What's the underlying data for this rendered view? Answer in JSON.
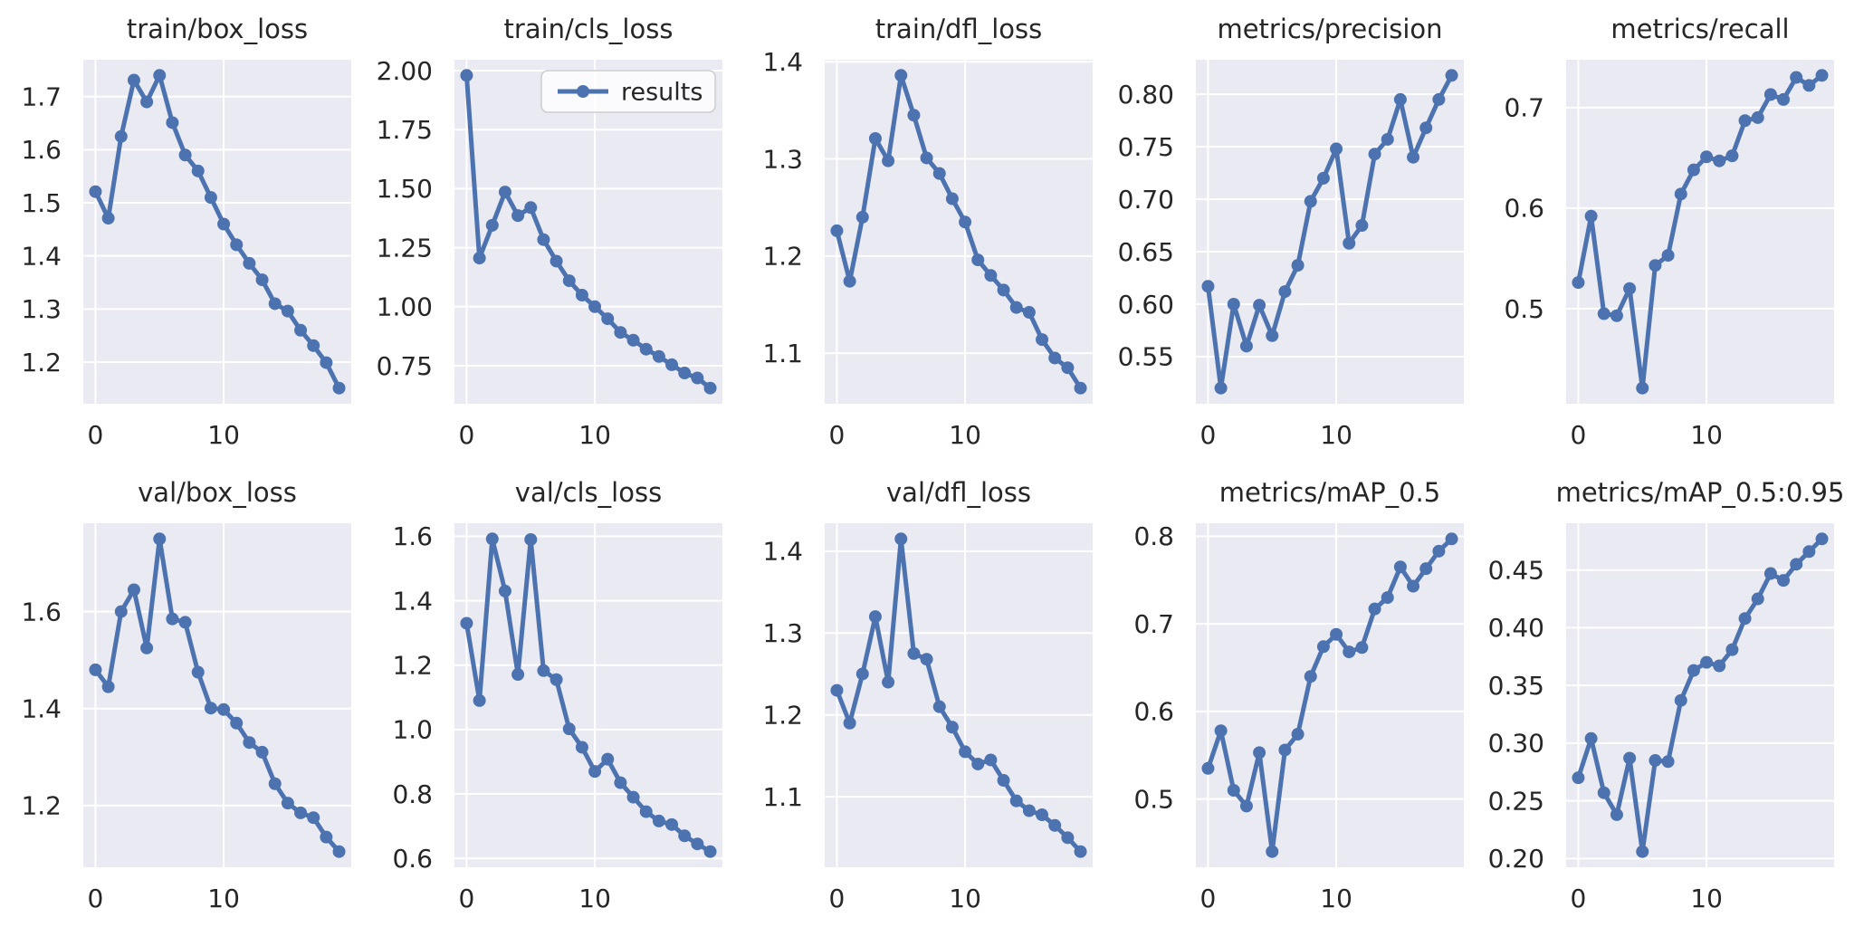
{
  "style": {
    "line_color": "#4C72B0",
    "plot_bg": "#EAEAF2",
    "grid_color": "#FFFFFF",
    "text_color": "#262626",
    "figure_bg": "#FFFFFF",
    "legend_face": "#FFFFFF",
    "legend_edge": "#CCCCCC"
  },
  "chart_data": {
    "type": "line",
    "layout": "2 rows x 5 columns",
    "series_name": "results",
    "x": [
      0,
      1,
      2,
      3,
      4,
      5,
      6,
      7,
      8,
      9,
      10,
      11,
      12,
      13,
      14,
      15,
      16,
      17,
      18,
      19
    ],
    "xticks": [
      0,
      10
    ],
    "xtick_labels": [
      "0",
      "10"
    ],
    "grid": true,
    "legend": {
      "label": "results",
      "position": "upper-right",
      "shown_on_chart": "train/cls_loss"
    },
    "charts": [
      {
        "title": "train/box_loss",
        "values": [
          1.521,
          1.471,
          1.625,
          1.731,
          1.69,
          1.74,
          1.651,
          1.59,
          1.56,
          1.51,
          1.46,
          1.421,
          1.386,
          1.355,
          1.31,
          1.296,
          1.26,
          1.231,
          1.199,
          1.151
        ],
        "yticks": [
          1.2,
          1.3,
          1.4,
          1.5,
          1.6,
          1.7
        ],
        "ytick_labels": [
          "1.2",
          "1.3",
          "1.4",
          "1.5",
          "1.6",
          "1.7"
        ],
        "has_legend": false
      },
      {
        "title": "train/cls_loss",
        "values": [
          1.98,
          1.206,
          1.345,
          1.486,
          1.386,
          1.42,
          1.284,
          1.193,
          1.11,
          1.049,
          1.0,
          0.949,
          0.891,
          0.858,
          0.82,
          0.789,
          0.754,
          0.719,
          0.698,
          0.655
        ],
        "yticks": [
          0.75,
          1.0,
          1.25,
          1.5,
          1.75,
          2.0
        ],
        "ytick_labels": [
          "0.75",
          "1.00",
          "1.25",
          "1.50",
          "1.75",
          "2.00"
        ],
        "has_legend": true
      },
      {
        "title": "train/dfl_loss",
        "values": [
          1.226,
          1.174,
          1.24,
          1.321,
          1.298,
          1.386,
          1.345,
          1.301,
          1.285,
          1.259,
          1.235,
          1.196,
          1.18,
          1.165,
          1.147,
          1.142,
          1.114,
          1.095,
          1.085,
          1.064
        ],
        "yticks": [
          1.1,
          1.2,
          1.3,
          1.4
        ],
        "ytick_labels": [
          "1.1",
          "1.2",
          "1.3",
          "1.4"
        ],
        "has_legend": false
      },
      {
        "title": "metrics/precision",
        "values": [
          0.617,
          0.52,
          0.6,
          0.56,
          0.599,
          0.57,
          0.612,
          0.637,
          0.698,
          0.72,
          0.748,
          0.658,
          0.675,
          0.743,
          0.757,
          0.795,
          0.74,
          0.768,
          0.795,
          0.818
        ],
        "yticks": [
          0.55,
          0.6,
          0.65,
          0.7,
          0.75,
          0.8
        ],
        "ytick_labels": [
          "0.55",
          "0.60",
          "0.65",
          "0.70",
          "0.75",
          "0.80"
        ],
        "has_legend": false
      },
      {
        "title": "metrics/recall",
        "values": [
          0.526,
          0.592,
          0.495,
          0.493,
          0.52,
          0.421,
          0.543,
          0.553,
          0.614,
          0.638,
          0.651,
          0.647,
          0.652,
          0.687,
          0.69,
          0.713,
          0.708,
          0.73,
          0.722,
          0.732
        ],
        "yticks": [
          0.5,
          0.6,
          0.7
        ],
        "ytick_labels": [
          "0.5",
          "0.6",
          "0.7"
        ],
        "has_legend": false
      },
      {
        "title": "val/box_loss",
        "values": [
          1.48,
          1.445,
          1.6,
          1.645,
          1.525,
          1.75,
          1.585,
          1.578,
          1.475,
          1.401,
          1.398,
          1.37,
          1.33,
          1.31,
          1.245,
          1.205,
          1.185,
          1.175,
          1.135,
          1.105
        ],
        "yticks": [
          1.2,
          1.4,
          1.6
        ],
        "ytick_labels": [
          "1.2",
          "1.4",
          "1.6"
        ],
        "has_legend": false
      },
      {
        "title": "val/cls_loss",
        "values": [
          1.33,
          1.09,
          1.592,
          1.43,
          1.171,
          1.59,
          1.183,
          1.155,
          1.002,
          0.945,
          0.87,
          0.908,
          0.835,
          0.79,
          0.745,
          0.716,
          0.705,
          0.67,
          0.645,
          0.621
        ],
        "yticks": [
          0.6,
          0.8,
          1.0,
          1.2,
          1.4,
          1.6
        ],
        "ytick_labels": [
          "0.6",
          "0.8",
          "1.0",
          "1.2",
          "1.4",
          "1.6"
        ],
        "has_legend": false
      },
      {
        "title": "val/dfl_loss",
        "values": [
          1.23,
          1.19,
          1.25,
          1.32,
          1.24,
          1.415,
          1.275,
          1.268,
          1.21,
          1.185,
          1.155,
          1.14,
          1.145,
          1.12,
          1.095,
          1.083,
          1.078,
          1.065,
          1.05,
          1.033
        ],
        "yticks": [
          1.1,
          1.2,
          1.3,
          1.4
        ],
        "ytick_labels": [
          "1.1",
          "1.2",
          "1.3",
          "1.4"
        ],
        "has_legend": false
      },
      {
        "title": "metrics/mAP_0.5",
        "values": [
          0.535,
          0.578,
          0.51,
          0.492,
          0.553,
          0.44,
          0.556,
          0.574,
          0.64,
          0.674,
          0.688,
          0.668,
          0.673,
          0.717,
          0.73,
          0.765,
          0.743,
          0.763,
          0.783,
          0.797
        ],
        "yticks": [
          0.5,
          0.6,
          0.7,
          0.8
        ],
        "ytick_labels": [
          "0.5",
          "0.6",
          "0.7",
          "0.8"
        ],
        "has_legend": false
      },
      {
        "title": "metrics/mAP_0.5:0.95",
        "values": [
          0.27,
          0.304,
          0.257,
          0.238,
          0.287,
          0.206,
          0.285,
          0.284,
          0.337,
          0.363,
          0.37,
          0.367,
          0.381,
          0.408,
          0.425,
          0.447,
          0.441,
          0.455,
          0.466,
          0.477
        ],
        "yticks": [
          0.2,
          0.25,
          0.3,
          0.35,
          0.4,
          0.45
        ],
        "ytick_labels": [
          "0.20",
          "0.25",
          "0.30",
          "0.35",
          "0.40",
          "0.45"
        ],
        "has_legend": false
      }
    ]
  }
}
